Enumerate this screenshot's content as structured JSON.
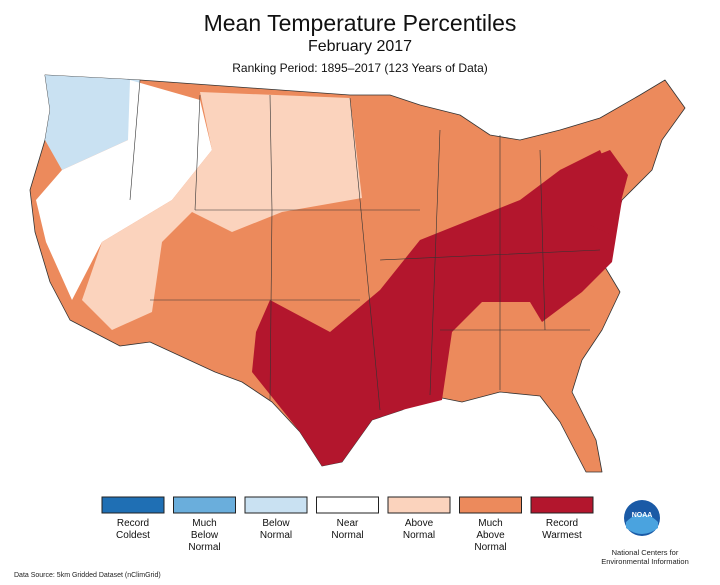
{
  "header": {
    "title": "Mean Temperature Percentiles",
    "subtitle": "February 2017",
    "ranking_period": "Ranking Period: 1895–2017 (123 Years of Data)"
  },
  "legend": {
    "items": [
      {
        "label": "Record Coldest",
        "color": "#1f6fb4"
      },
      {
        "label": "Much Below Normal",
        "color": "#6aaedc"
      },
      {
        "label": "Below Normal",
        "color": "#c9e1f2"
      },
      {
        "label": "Near Normal",
        "color": "#ffffff"
      },
      {
        "label": "Above Normal",
        "color": "#fbd3bd"
      },
      {
        "label": "Much Above Normal",
        "color": "#ec8a5c"
      },
      {
        "label": "Record Warmest",
        "color": "#b3162d"
      }
    ]
  },
  "footer": {
    "data_source": "Data Source: 5km Gridded Dataset (nClimGrid)",
    "logo": "NOAA",
    "credit": "National Centers for Environmental Information"
  }
}
